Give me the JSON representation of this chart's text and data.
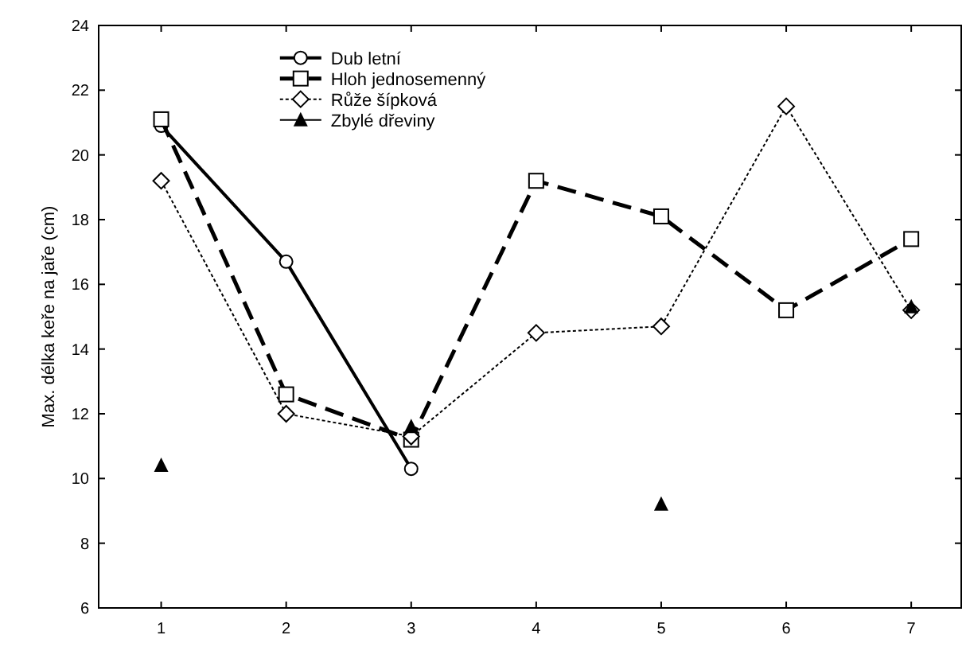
{
  "chart_data": {
    "type": "line",
    "ylabel": "Max. délka keře na jaře (cm)",
    "x": [
      1,
      2,
      3,
      4,
      5,
      6,
      7
    ],
    "xlim": [
      0.5,
      7.4
    ],
    "xticks": [
      1,
      2,
      3,
      4,
      5,
      6,
      7
    ],
    "ylim": [
      6,
      24
    ],
    "yticks": [
      6,
      8,
      10,
      12,
      14,
      16,
      18,
      20,
      22,
      24
    ],
    "grid": false,
    "legend": "top left",
    "series": [
      {
        "name": "Dub letní",
        "color": "#000000",
        "marker": "circle",
        "line_style": "solid",
        "values": [
          20.9,
          16.7,
          10.3,
          null,
          null,
          null,
          null
        ]
      },
      {
        "name": "Hloh jednosemenný",
        "color": "#000000",
        "marker": "square",
        "line_style": "dashed",
        "values": [
          21.1,
          12.6,
          11.2,
          19.2,
          18.1,
          15.2,
          17.4
        ]
      },
      {
        "name": "Růže šípková",
        "color": "#000000",
        "marker": "diamond",
        "line_style": "dotted",
        "values": [
          19.2,
          12.0,
          11.3,
          14.5,
          14.7,
          21.5,
          15.2
        ]
      },
      {
        "name": "Zbylé dřeviny",
        "color": "#000000",
        "type": "scatter",
        "marker": "triangle",
        "values": [
          10.4,
          null,
          11.6,
          null,
          9.2,
          null,
          15.3
        ]
      }
    ]
  }
}
